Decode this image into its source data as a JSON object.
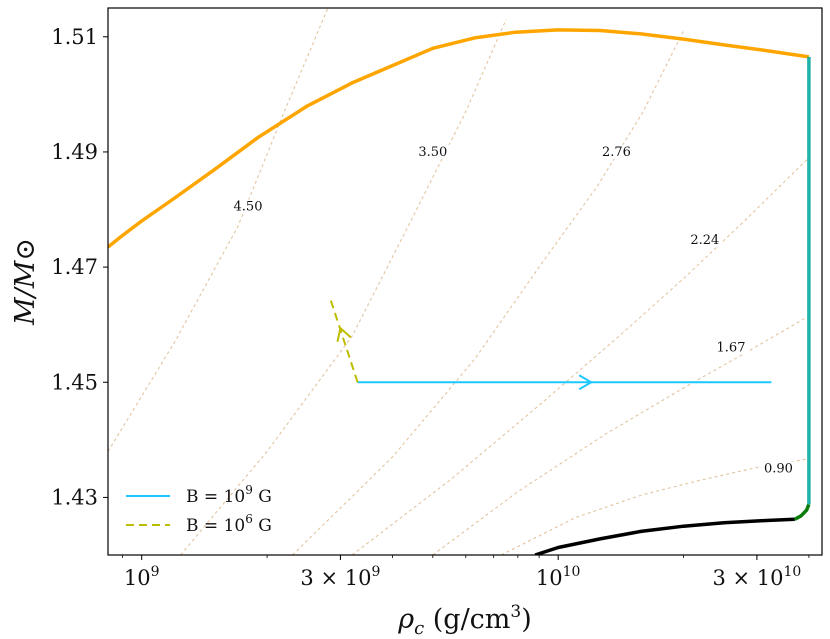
{
  "chart_data": {
    "type": "line",
    "xscale": "log",
    "xlabel": "ρc (g/cm3)",
    "xlabel_parts": {
      "symbol": "ρ",
      "sub": "c",
      "unit_open": " (g/cm",
      "sup": "3",
      "unit_close": ")"
    },
    "ylabel": "M/M⊙",
    "xlim": [
      830000000.0,
      43000000000.0
    ],
    "ylim": [
      1.42,
      1.515
    ],
    "x_ticks": [
      {
        "value": 1000000000.0,
        "base": "10",
        "exp": "9",
        "coef": ""
      },
      {
        "value": 3000000000.0,
        "base": "10",
        "exp": "9",
        "coef": "3 × "
      },
      {
        "value": 10000000000.0,
        "base": "10",
        "exp": "10",
        "coef": ""
      },
      {
        "value": 30000000000.0,
        "base": "10",
        "exp": "10",
        "coef": "3 × "
      }
    ],
    "y_ticks": [
      "1.43",
      "1.45",
      "1.47",
      "1.49",
      "1.51"
    ],
    "series": [
      {
        "name": "max_mass_curve",
        "color": "#FFA500",
        "width": 3.5,
        "x": [
          830000000.0,
          900000000.0,
          1000000000.0,
          1200000000.0,
          1500000000.0,
          1900000000.0,
          2500000000.0,
          3200000000.0,
          4000000000.0,
          5000000000.0,
          6300000000.0,
          7900000000.0,
          10000000000.0,
          12600000000.0,
          15800000000.0,
          20000000000.0,
          25000000000.0,
          31600000000.0,
          40000000000.0
        ],
        "y": [
          1.4735,
          1.4755,
          1.478,
          1.482,
          1.487,
          1.4925,
          1.498,
          1.502,
          1.505,
          1.508,
          1.5098,
          1.5108,
          1.5112,
          1.5111,
          1.5105,
          1.5096,
          1.5086,
          1.5076,
          1.5065
        ]
      },
      {
        "name": "min_mass_curve",
        "color": "#000000",
        "width": 3.5,
        "x": [
          8800000000.0,
          10000000000.0,
          12600000000.0,
          15800000000.0,
          20000000000.0,
          25000000000.0,
          31600000000.0,
          37000000000.0
        ],
        "y": [
          1.42,
          1.4213,
          1.4228,
          1.4241,
          1.425,
          1.4256,
          1.426,
          1.4262
        ]
      },
      {
        "name": "green_segment",
        "color": "#0a7d0a",
        "width": 3.5,
        "x": [
          37000000000.0,
          38300000000.0,
          39500000000.0,
          40000000000.0
        ],
        "y": [
          1.4262,
          1.4268,
          1.4278,
          1.4288
        ]
      },
      {
        "name": "teal_vertical",
        "color": "#20B2AA",
        "width": 3.5,
        "x": [
          40000000000.0,
          40000000000.0
        ],
        "y": [
          1.4288,
          1.5065
        ]
      },
      {
        "name": "B = 10^9 G",
        "color": "#1EC8FF",
        "width": 2,
        "dash": "none",
        "x": [
          3300000000.0,
          32500000000.0
        ],
        "y": [
          1.45,
          1.45
        ],
        "arrow_at": {
          "x": 12000000000.0,
          "y": 1.45,
          "direction": "right"
        }
      },
      {
        "name": "B = 10^6 G",
        "color": "#BDBD00",
        "width": 2,
        "dash": "dashed",
        "x": [
          3300000000.0,
          2830000000.0
        ],
        "y": [
          1.45,
          1.4647
        ],
        "arrow_at": {
          "x": 3000000000.0,
          "y": 1.4594,
          "direction": "up-left"
        }
      }
    ],
    "contours": [
      {
        "label": "4.50",
        "label_x": 1800000000.0,
        "label_y": 1.48,
        "x": [
          830000000.0,
          1200000000.0,
          1700000000.0,
          2200000000.0,
          2800000000.0
        ],
        "y": [
          1.438,
          1.457,
          1.477,
          1.497,
          1.515
        ]
      },
      {
        "label": "3.50",
        "label_x": 5000000000.0,
        "label_y": 1.4895,
        "x": [
          1240000000.0,
          2000000000.0,
          3200000000.0,
          4500000000.0,
          6000000000.0,
          7500000000.0
        ],
        "y": [
          1.42,
          1.438,
          1.458,
          1.479,
          1.497,
          1.513
        ]
      },
      {
        "label": "2.76",
        "label_x": 13800000000.0,
        "label_y": 1.4895,
        "x": [
          2300000000.0,
          4000000000.0,
          6300000000.0,
          9000000000.0,
          12400000000.0,
          16000000000.0,
          20000000000.0
        ],
        "y": [
          1.42,
          1.437,
          1.454,
          1.47,
          1.484,
          1.497,
          1.511
        ]
      },
      {
        "label": "2.24",
        "label_x": 22500000000.0,
        "label_y": 1.4742,
        "x": [
          3200000000.0,
          5500000000.0,
          9000000000.0,
          14000000000.0,
          20000000000.0,
          28000000000.0,
          40000000000.0
        ],
        "y": [
          1.42,
          1.433,
          1.446,
          1.458,
          1.468,
          1.478,
          1.489
        ]
      },
      {
        "label": "1.67",
        "label_x": 26000000000.0,
        "label_y": 1.4555,
        "x": [
          5000000000.0,
          8000000000.0,
          13000000000.0,
          20000000000.0,
          28000000000.0,
          40000000000.0
        ],
        "y": [
          1.42,
          1.431,
          1.441,
          1.449,
          1.455,
          1.4615
        ]
      },
      {
        "label": "0.90",
        "label_x": 33800000000.0,
        "label_y": 1.4345,
        "x": [
          7300000000.0,
          11000000000.0,
          16000000000.0,
          22000000000.0,
          30000000000.0,
          40000000000.0
        ],
        "y": [
          1.42,
          1.4265,
          1.4305,
          1.433,
          1.4352,
          1.4367
        ]
      }
    ],
    "contour_color": "#E2C4A0",
    "legend": {
      "location": "lower-left",
      "entries": [
        {
          "series": "B = 10^9 G",
          "prefix": "B = 10",
          "sup": "9",
          "suffix": " G"
        },
        {
          "series": "B = 10^6 G",
          "prefix": "B = 10",
          "sup": "6",
          "suffix": " G"
        }
      ]
    }
  }
}
